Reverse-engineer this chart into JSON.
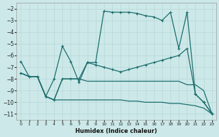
{
  "xlabel": "Humidex (Indice chaleur)",
  "bg_color": "#cce8e8",
  "grid_color": "#b8d8d8",
  "line_color": "#1a6b6b",
  "xlim": [
    -0.5,
    23.5
  ],
  "ylim": [
    -11.5,
    -1.5
  ],
  "yticks": [
    -2,
    -3,
    -4,
    -5,
    -6,
    -7,
    -8,
    -9,
    -10,
    -11
  ],
  "xticks": [
    0,
    1,
    2,
    3,
    4,
    5,
    6,
    7,
    8,
    9,
    10,
    11,
    12,
    13,
    14,
    15,
    16,
    17,
    18,
    19,
    20,
    21,
    22,
    23
  ],
  "s1_x": [
    0,
    1,
    2,
    3,
    4,
    5,
    6,
    7,
    8,
    9,
    10,
    11,
    12,
    13,
    14,
    15,
    16,
    17,
    18,
    19,
    20,
    21,
    22,
    23
  ],
  "s1_y": [
    -6.5,
    -7.8,
    -7.8,
    -9.5,
    -8.0,
    -5.2,
    -6.5,
    -8.3,
    -6.6,
    -6.6,
    -2.2,
    -2.3,
    -2.3,
    -2.3,
    -2.4,
    -2.6,
    -2.7,
    -3.0,
    -2.3,
    -5.4,
    -2.3,
    -9.3,
    -10.0,
    -11.0
  ],
  "s2_x": [
    0,
    1,
    2,
    3,
    4,
    5,
    6,
    7,
    8,
    9,
    10,
    11,
    12,
    13,
    14,
    15,
    16,
    17,
    18,
    19,
    20,
    21,
    22,
    23
  ],
  "s2_y": [
    -7.5,
    -7.8,
    -7.8,
    -9.5,
    -9.8,
    -8.0,
    -8.0,
    -8.0,
    -6.6,
    -6.8,
    -7.0,
    -7.2,
    -7.4,
    -7.2,
    -7.0,
    -6.8,
    -6.6,
    -6.4,
    -6.2,
    -6.0,
    -5.4,
    -9.3,
    -10.0,
    -11.0
  ],
  "s3_x": [
    0,
    1,
    2,
    3,
    4,
    5,
    6,
    7,
    8,
    9,
    10,
    11,
    12,
    13,
    14,
    15,
    16,
    17,
    18,
    19,
    20,
    21,
    22,
    23
  ],
  "s3_y": [
    -7.5,
    -7.8,
    -7.8,
    -9.5,
    -9.8,
    -8.0,
    -8.0,
    -8.0,
    -8.2,
    -8.2,
    -8.2,
    -8.2,
    -8.2,
    -8.2,
    -8.2,
    -8.2,
    -8.2,
    -8.2,
    -8.2,
    -8.2,
    -8.5,
    -8.5,
    -9.0,
    -11.0
  ],
  "s4_x": [
    0,
    1,
    2,
    3,
    4,
    5,
    6,
    7,
    8,
    9,
    10,
    11,
    12,
    13,
    14,
    15,
    16,
    17,
    18,
    19,
    20,
    21,
    22,
    23
  ],
  "s4_y": [
    -7.5,
    -7.8,
    -7.8,
    -9.5,
    -9.8,
    -9.8,
    -9.8,
    -9.8,
    -9.8,
    -9.8,
    -9.8,
    -9.8,
    -9.8,
    -9.9,
    -9.9,
    -10.0,
    -10.0,
    -10.0,
    -10.1,
    -10.1,
    -10.2,
    -10.3,
    -10.5,
    -11.0
  ]
}
